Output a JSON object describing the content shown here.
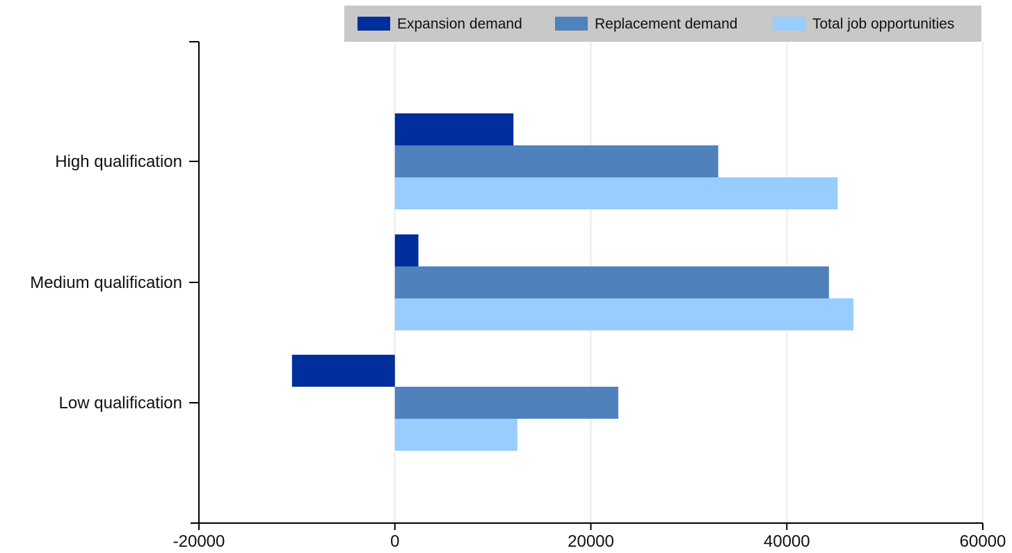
{
  "chart_data": {
    "type": "bar",
    "orientation": "horizontal",
    "title": "",
    "xlabel": "",
    "ylabel": "",
    "categories": [
      "High qualification",
      "Medium qualification",
      "Low qualification"
    ],
    "series": [
      {
        "name": "Expansion demand",
        "values": [
          12100,
          2400,
          -10500
        ],
        "color": "#002e9c"
      },
      {
        "name": "Replacement demand",
        "values": [
          33000,
          44300,
          22800
        ],
        "color": "#4f81bd"
      },
      {
        "name": "Total job opportunities",
        "values": [
          45200,
          46800,
          12500
        ],
        "color": "#99ccff"
      }
    ],
    "xlim": [
      -20000,
      60000
    ],
    "xticks": [
      -20000,
      0,
      20000,
      40000,
      60000
    ],
    "xtick_labels": [
      "-20000",
      "0",
      "20000",
      "40000",
      "60000"
    ],
    "grid": "vertical",
    "grid_color": "#d9d9d9",
    "legend_position": "top-right",
    "legend_background": "#c8c8c8"
  }
}
